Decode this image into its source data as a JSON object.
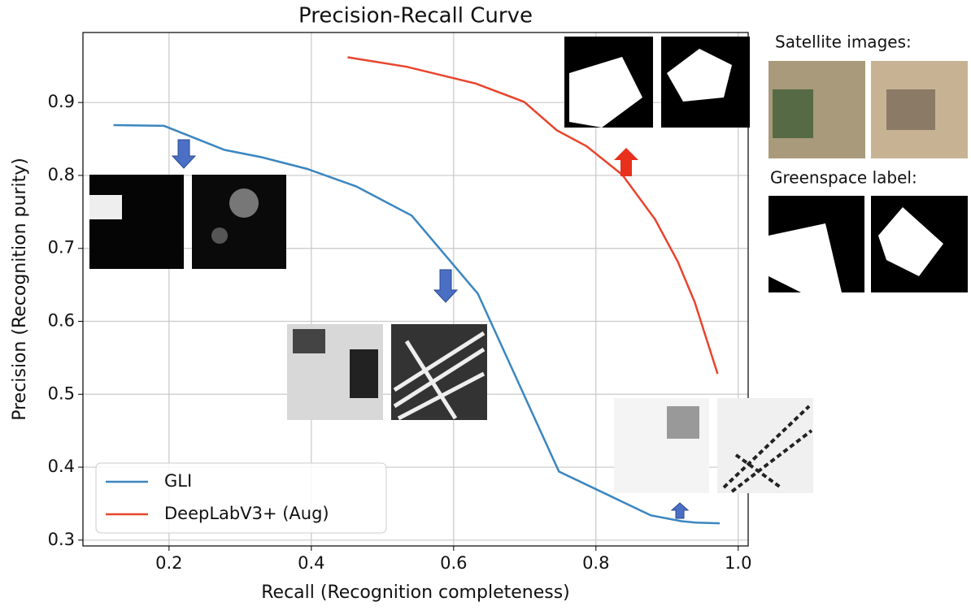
{
  "chart_data": {
    "type": "line",
    "title": "Precision-Recall Curve",
    "x_label": "Recall (Recognition completeness)",
    "y_label": "Precision (Recognition purity)",
    "series": [
      {
        "name": "GLI",
        "color": "#3b86c0",
        "x": [
          0.122,
          0.193,
          0.278,
          0.33,
          0.394,
          0.463,
          0.541,
          0.634,
          0.748,
          0.877,
          0.92,
          0.94,
          0.974
        ],
        "values": [
          0.869,
          0.868,
          0.835,
          0.825,
          0.809,
          0.785,
          0.745,
          0.638,
          0.394,
          0.334,
          0.326,
          0.324,
          0.323
        ]
      },
      {
        "name": "DeepLabV3+ (Aug)",
        "color": "#e8442c",
        "x": [
          0.451,
          0.534,
          0.631,
          0.699,
          0.745,
          0.787,
          0.837,
          0.883,
          0.915,
          0.939,
          0.971
        ],
        "values": [
          0.962,
          0.949,
          0.926,
          0.901,
          0.862,
          0.84,
          0.801,
          0.74,
          0.682,
          0.626,
          0.528
        ]
      }
    ],
    "xlim": [
      0.079,
      1.014
    ],
    "ylim": [
      0.292,
      0.996
    ],
    "xticks": [
      0.2,
      0.4,
      0.6,
      0.8,
      {
        "value": 1,
        "label": "1.0"
      }
    ],
    "yticks": [
      0.3,
      0.4,
      0.5,
      0.6,
      0.7,
      0.8,
      0.9
    ],
    "grid": true,
    "legend": "lower left",
    "annotations": [
      "Satellite images:",
      "Greenspace label:"
    ]
  }
}
